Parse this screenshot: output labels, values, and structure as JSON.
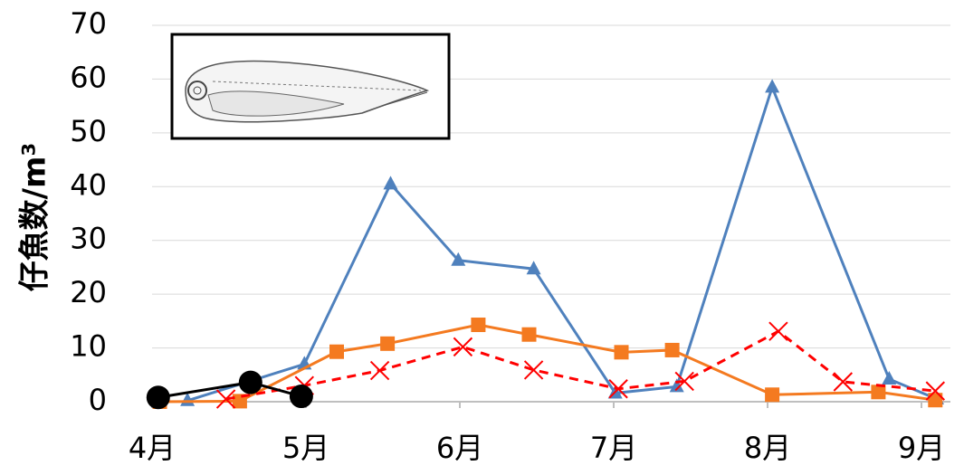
{
  "chart_data": {
    "type": "line",
    "y_label": "仔魚数/m³",
    "xlim": [
      4,
      9.15
    ],
    "xticks": [
      {
        "value": 4,
        "label": "4月"
      },
      {
        "value": 5,
        "label": "5月"
      },
      {
        "value": 6,
        "label": "6月"
      },
      {
        "value": 7,
        "label": "7月"
      },
      {
        "value": 8,
        "label": "8月"
      },
      {
        "value": 9,
        "label": "9月"
      }
    ],
    "ylim": [
      0,
      70
    ],
    "yticks": [
      0,
      10,
      20,
      30,
      40,
      50,
      60,
      70
    ],
    "grid": true,
    "series": [
      {
        "color": "#4f81bd",
        "marker": "triangle",
        "dashed": false,
        "x": [
          4.23,
          4.99,
          5.55,
          5.99,
          6.48,
          7.01,
          7.41,
          8.03,
          8.79,
          9.1
        ],
        "values": [
          0.2,
          7,
          40.5,
          26.3,
          24.7,
          1.6,
          2.8,
          58.5,
          4.2,
          0.5
        ]
      },
      {
        "color": "#f47a20",
        "marker": "square",
        "dashed": false,
        "x": [
          4.05,
          4.57,
          5.2,
          5.53,
          6.12,
          6.45,
          7.05,
          7.38,
          8.03,
          8.72,
          9.09
        ],
        "values": [
          0,
          0.1,
          9.3,
          10.8,
          14.3,
          12.5,
          9.2,
          9.6,
          1.3,
          1.8,
          0.3
        ]
      },
      {
        "color": "#ff0000",
        "marker": "x",
        "dashed": true,
        "x": [
          4.48,
          4.99,
          5.48,
          6.02,
          6.48,
          7.03,
          7.46,
          8.07,
          8.49,
          9.09
        ],
        "values": [
          0.5,
          3,
          5.8,
          10.2,
          5.9,
          2.4,
          3.8,
          13.1,
          3.7,
          2
        ]
      },
      {
        "color": "#000000",
        "marker": "circle",
        "dashed": false,
        "x": [
          4.04,
          4.64,
          4.97
        ],
        "values": [
          0.8,
          3.6,
          1.0
        ]
      }
    ]
  }
}
